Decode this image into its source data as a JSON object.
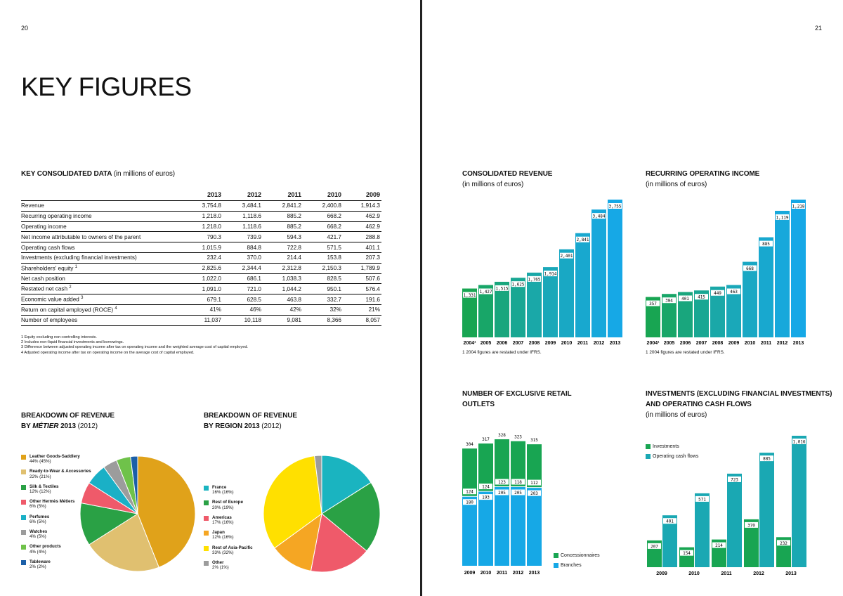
{
  "pages": {
    "left_number": "20",
    "right_number": "21"
  },
  "title": "KEY FIGURES",
  "colors": {
    "green": "#18a552",
    "teal": "#1aa8b3",
    "blue": "#16a8e6",
    "leather": "#e0a21a",
    "rtw": "#e0c070",
    "silk": "#2aa145",
    "other_metiers": "#ef5a6a",
    "perfumes": "#1ab0c6",
    "watches": "#9c9c9c",
    "other_products": "#6fc24a",
    "tableware": "#1b5fa8",
    "france": "#1ab4c0",
    "rest_europe": "#2aa145",
    "americas": "#ef5a6a",
    "japan": "#f5a623",
    "asia_pacific": "#ffe000",
    "other": "#9c9c9c"
  },
  "key_data": {
    "heading": "KEY CONSOLIDATED DATA",
    "heading_sub": "(in millions of euros)",
    "years": [
      "2013",
      "2012",
      "2011",
      "2010",
      "2009"
    ],
    "rows": [
      {
        "label": "Revenue",
        "values": [
          "3,754.8",
          "3,484.1",
          "2,841.2",
          "2,400.8",
          "1,914.3"
        ]
      },
      {
        "label": "Recurring operating income",
        "values": [
          "1,218.0",
          "1,118.6",
          "885.2",
          "668.2",
          "462.9"
        ]
      },
      {
        "label": "Operating income",
        "values": [
          "1,218.0",
          "1,118.6",
          "885.2",
          "668.2",
          "462.9"
        ]
      },
      {
        "label": "Net income attributable to owners of the parent",
        "values": [
          "790.3",
          "739.9",
          "594.3",
          "421.7",
          "288.8"
        ]
      },
      {
        "label": "Operating cash flows",
        "values": [
          "1,015.9",
          "884.8",
          "722.8",
          "571.5",
          "401.1"
        ]
      },
      {
        "label": "Investments (excluding financial investments)",
        "values": [
          "232.4",
          "370.0",
          "214.4",
          "153.8",
          "207.3"
        ]
      },
      {
        "label": "Shareholders' equity",
        "sup": "1",
        "values": [
          "2,825.6",
          "2,344.4",
          "2,312.8",
          "2,150.3",
          "1,789.9"
        ]
      },
      {
        "label": "Net cash position",
        "values": [
          "1,022.0",
          "686.1",
          "1,038.3",
          "828.5",
          "507.6"
        ]
      },
      {
        "label": "Restated net cash",
        "sup": "2",
        "values": [
          "1,091.0",
          "721.0",
          "1,044.2",
          "950.1",
          "576.4"
        ]
      },
      {
        "label": "Economic value added",
        "sup": "3",
        "values": [
          "679.1",
          "628.5",
          "463.8",
          "332.7",
          "191.6"
        ]
      },
      {
        "label": "Return on capital employed (ROCE)",
        "sup": "4",
        "values": [
          "41%",
          "46%",
          "42%",
          "32%",
          "21%"
        ]
      },
      {
        "label": "Number of employees",
        "values": [
          "11,037",
          "10,118",
          "9,081",
          "8,366",
          "8,057"
        ]
      }
    ],
    "footnotes": [
      "1 Equity excluding non-controlling interests.",
      "2 Includes non-liquid financial investments and borrowings.",
      "3 Difference between adjusted operating income after tax on operating income and the weighted average cost of capital employed.",
      "4 Adjusted operating income after tax on operating income on the average cost of capital employed."
    ]
  },
  "metier_pie": {
    "heading_l1": "BREAKDOWN OF REVENUE",
    "heading_by": "BY",
    "heading_metier": "MÉTIER",
    "heading_year": "2013",
    "heading_sub": "(2012)",
    "chart_data": {
      "type": "pie",
      "slices": [
        {
          "label": "Leather Goods-Saddlery",
          "pct_text": "44% (45%)",
          "value": 44,
          "color_key": "leather"
        },
        {
          "label": "Ready-to-Wear & Accessories",
          "pct_text": "22% (21%)",
          "value": 22,
          "color_key": "rtw"
        },
        {
          "label": "Silk & Textiles",
          "pct_text": "12% (12%)",
          "value": 12,
          "color_key": "silk"
        },
        {
          "label": "Other Hermès Métiers",
          "pct_text": "6% (5%)",
          "value": 6,
          "color_key": "other_metiers"
        },
        {
          "label": "Perfumes",
          "pct_text": "6% (5%)",
          "value": 6,
          "color_key": "perfumes"
        },
        {
          "label": "Watches",
          "pct_text": "4% (5%)",
          "value": 4,
          "color_key": "watches"
        },
        {
          "label": "Other products",
          "pct_text": "4% (4%)",
          "value": 4,
          "color_key": "other_products"
        },
        {
          "label": "Tableware",
          "pct_text": "2% (2%)",
          "value": 2,
          "color_key": "tableware"
        }
      ]
    }
  },
  "region_pie": {
    "heading_l1": "BREAKDOWN OF REVENUE",
    "heading_l2": "BY REGION 2013",
    "heading_sub": "(2012)",
    "chart_data": {
      "type": "pie",
      "slices": [
        {
          "label": "France",
          "pct_text": "16% (16%)",
          "value": 16,
          "color_key": "france"
        },
        {
          "label": "Rest of Europe",
          "pct_text": "20% (19%)",
          "value": 20,
          "color_key": "rest_europe"
        },
        {
          "label": "Americas",
          "pct_text": "17% (16%)",
          "value": 17,
          "color_key": "americas"
        },
        {
          "label": "Japan",
          "pct_text": "12% (16%)",
          "value": 12,
          "color_key": "japan"
        },
        {
          "label": "Rest of Asia-Pacific",
          "pct_text": "33% (32%)",
          "value": 33,
          "color_key": "asia_pacific"
        },
        {
          "label": "Other",
          "pct_text": "2% (1%)",
          "value": 2,
          "color_key": "other"
        }
      ]
    }
  },
  "revenue_chart": {
    "heading_l1": "CONSOLIDATED REVENUE",
    "heading_l2": "(in millions of euros)",
    "note": "1 2004 figures are restated under IFRS.",
    "chart_data": {
      "type": "bar",
      "categories": [
        "2004¹",
        "2005",
        "2006",
        "2007",
        "2008",
        "2009",
        "2010",
        "2011",
        "2012",
        "2013"
      ],
      "values": [
        1331,
        1427,
        1515,
        1625,
        1765,
        1914,
        2401,
        2841,
        3484,
        3755
      ],
      "value_labels": [
        "1,331",
        "1,427",
        "1,515",
        "1,625",
        "1,765",
        "1,914",
        "2,401",
        "2,841",
        "3,484",
        "3,755"
      ],
      "ylim": [
        0,
        3755
      ]
    }
  },
  "income_chart": {
    "heading_l1": "RECURRING OPERATING INCOME",
    "heading_l2": "(in millions of euros)",
    "note": "1 2004 figures are restated under IFRS.",
    "chart_data": {
      "type": "bar",
      "categories": [
        "2004¹",
        "2005",
        "2006",
        "2007",
        "2008",
        "2009",
        "2010",
        "2011",
        "2012",
        "2013"
      ],
      "values": [
        357,
        384,
        401,
        415,
        449,
        463,
        668,
        885,
        1119,
        1218
      ],
      "value_labels": [
        "357",
        "384",
        "401",
        "415",
        "449",
        "463",
        "668",
        "885",
        "1,119",
        "1,218"
      ],
      "ylim": [
        0,
        1218
      ]
    }
  },
  "outlets_chart": {
    "heading_l1": "NUMBER OF EXCLUSIVE RETAIL",
    "heading_l2": "OUTLETS",
    "chart_data": {
      "type": "bar",
      "stacked": true,
      "categories": [
        "2009",
        "2010",
        "2011",
        "2012",
        "2013"
      ],
      "totals": [
        304,
        317,
        328,
        323,
        315
      ],
      "series": [
        {
          "name": "Branches",
          "values": [
            180,
            193,
            205,
            205,
            203
          ],
          "color_key": "blue"
        },
        {
          "name": "Concessionnaires",
          "values": [
            124,
            124,
            123,
            118,
            112
          ],
          "color_key": "green"
        }
      ],
      "ylim": [
        0,
        328
      ]
    }
  },
  "investments_chart": {
    "heading_l1": "INVESTMENTS (EXCLUDING FINANCIAL INVESTMENTS)",
    "heading_l2": "AND OPERATING CASH FLOWS",
    "heading_l3": "(in millions of euros)",
    "chart_data": {
      "type": "bar",
      "categories": [
        "2009",
        "2010",
        "2011",
        "2012",
        "2013"
      ],
      "series": [
        {
          "name": "Investments",
          "values": [
            207,
            154,
            214,
            370,
            232
          ],
          "color_key": "green"
        },
        {
          "name": "Operating cash flows",
          "values": [
            401,
            571,
            723,
            885,
            1016
          ],
          "color_key": "teal"
        }
      ],
      "value_labels": {
        "Investments": [
          "207",
          "154",
          "214",
          "370",
          "232"
        ],
        "Operating cash flows": [
          "401",
          "571",
          "723",
          "885",
          "1,016"
        ]
      },
      "ylim": [
        0,
        1016
      ]
    }
  }
}
